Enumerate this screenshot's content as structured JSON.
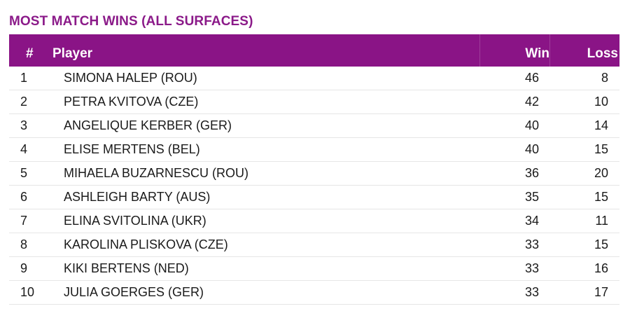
{
  "title": "MOST MATCH WINS (ALL SURFACES)",
  "columns": {
    "rank": "#",
    "player": "Player",
    "win": "Win",
    "loss": "Loss"
  },
  "rows": [
    {
      "rank": "1",
      "player": "SIMONA HALEP (ROU)",
      "win": "46",
      "loss": "8"
    },
    {
      "rank": "2",
      "player": "PETRA KVITOVA (CZE)",
      "win": "42",
      "loss": "10"
    },
    {
      "rank": "3",
      "player": "ANGELIQUE KERBER (GER)",
      "win": "40",
      "loss": "14"
    },
    {
      "rank": "4",
      "player": "ELISE MERTENS (BEL)",
      "win": "40",
      "loss": "15"
    },
    {
      "rank": "5",
      "player": "MIHAELA BUZARNESCU (ROU)",
      "win": "36",
      "loss": "20"
    },
    {
      "rank": "6",
      "player": "ASHLEIGH BARTY (AUS)",
      "win": "35",
      "loss": "15"
    },
    {
      "rank": "7",
      "player": "ELINA SVITOLINA (UKR)",
      "win": "34",
      "loss": "11"
    },
    {
      "rank": "8",
      "player": "KAROLINA PLISKOVA (CZE)",
      "win": "33",
      "loss": "15"
    },
    {
      "rank": "9",
      "player": "KIKI BERTENS (NED)",
      "win": "33",
      "loss": "16"
    },
    {
      "rank": "10",
      "player": "JULIA GOERGES (GER)",
      "win": "33",
      "loss": "17"
    }
  ],
  "colors": {
    "title": "#8b1a89",
    "header_bg": "#8a1486",
    "header_text": "#ffffff"
  }
}
